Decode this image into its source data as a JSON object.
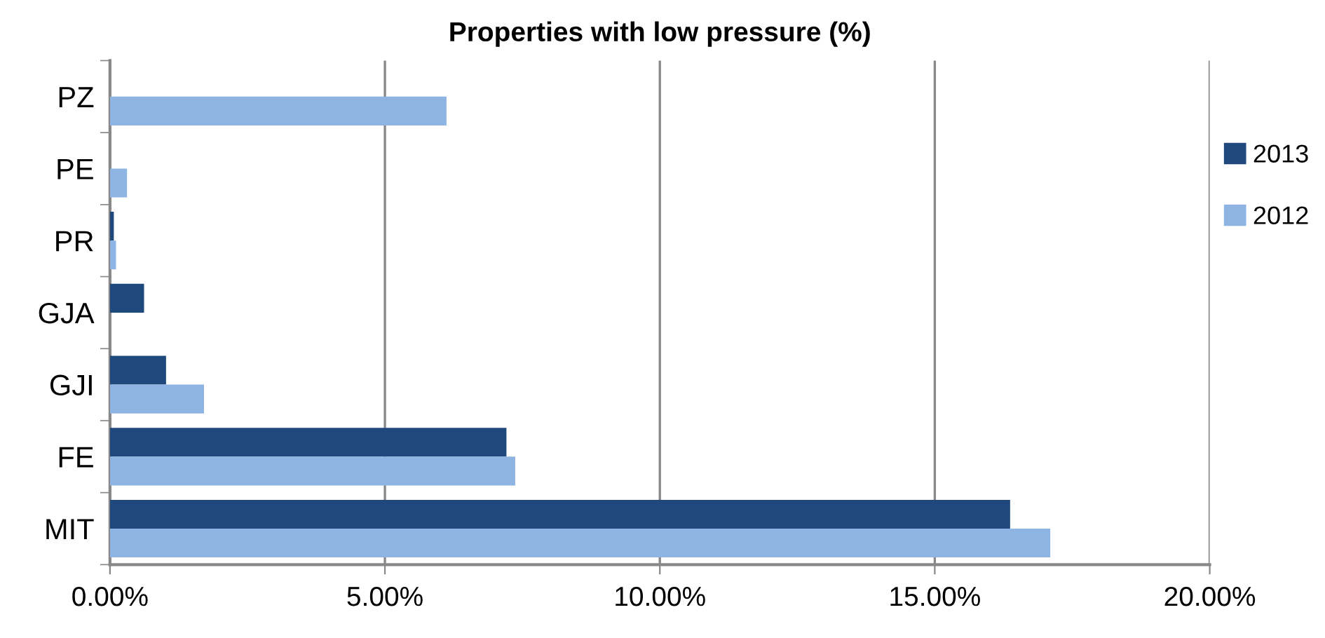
{
  "chart_data": {
    "type": "bar",
    "orientation": "horizontal",
    "title": "Properties with low pressure (%)",
    "categories": [
      "PZ",
      "PE",
      "PR",
      "GJA",
      "GJI",
      "FE",
      "MIT"
    ],
    "series": [
      {
        "name": "2013",
        "color": "#1f497d",
        "values": [
          null,
          null,
          0.07,
          0.62,
          1.02,
          7.21,
          16.37
        ]
      },
      {
        "name": "2012",
        "color": "#8eb4e3",
        "values": [
          6.12,
          0.31,
          0.11,
          null,
          1.71,
          7.37,
          17.1
        ]
      }
    ],
    "xlim": [
      0,
      20
    ],
    "xticks": [
      {
        "value": 0,
        "label": "0.00%"
      },
      {
        "value": 5,
        "label": "5.00%"
      },
      {
        "value": 10,
        "label": "10.00%"
      },
      {
        "value": 15,
        "label": "15.00%"
      },
      {
        "value": 20,
        "label": "20.00%"
      }
    ],
    "grid": "x",
    "legend": "right"
  }
}
